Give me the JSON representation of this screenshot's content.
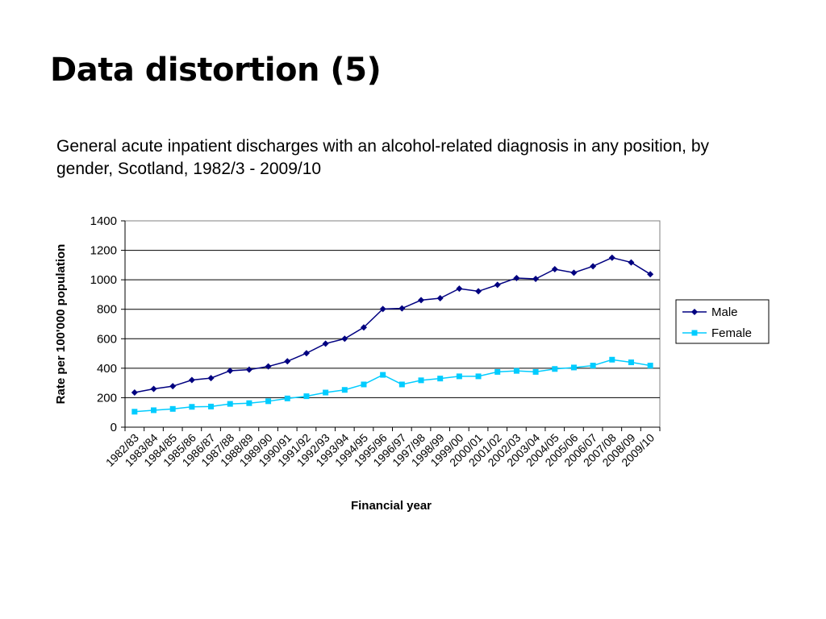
{
  "slide": {
    "title": "Data distortion (5)",
    "caption": "General acute inpatient discharges with an alcohol-related diagnosis in any position, by gender, Scotland, 1982/3 - 2009/10"
  },
  "chart_data": {
    "type": "line",
    "title": "",
    "xlabel": "Financial year",
    "ylabel": "Rate per 100'000 population",
    "ylim": [
      0,
      1400
    ],
    "yticks": [
      0,
      200,
      400,
      600,
      800,
      1000,
      1200,
      1400
    ],
    "grid": "horizontal",
    "legend_position": "right",
    "categories": [
      "1982/83",
      "1983/84",
      "1984/85",
      "1985/86",
      "1986/87",
      "1987/88",
      "1988/89",
      "1989/90",
      "1990/91",
      "1991/92",
      "1992/93",
      "1993/94",
      "1994/95",
      "1995/96",
      "1996/97",
      "1997/98",
      "1998/99",
      "1999/00",
      "2000/01",
      "2001/02",
      "2002/03",
      "2003/04",
      "2004/05",
      "2005/06",
      "2006/07",
      "2007/08",
      "2008/09",
      "2009/10"
    ],
    "series": [
      {
        "name": "Male",
        "color": "#000080",
        "marker": "diamond",
        "values": [
          235,
          260,
          278,
          320,
          333,
          383,
          390,
          412,
          447,
          502,
          567,
          600,
          677,
          802,
          806,
          862,
          875,
          940,
          922,
          966,
          1012,
          1006,
          1072,
          1048,
          1092,
          1150,
          1118,
          1038
        ]
      },
      {
        "name": "Female",
        "color": "#00CCFF",
        "marker": "square",
        "values": [
          105,
          115,
          124,
          138,
          140,
          158,
          163,
          176,
          195,
          210,
          235,
          253,
          290,
          355,
          290,
          318,
          330,
          345,
          345,
          375,
          382,
          375,
          395,
          405,
          418,
          458,
          440,
          418
        ]
      }
    ]
  }
}
